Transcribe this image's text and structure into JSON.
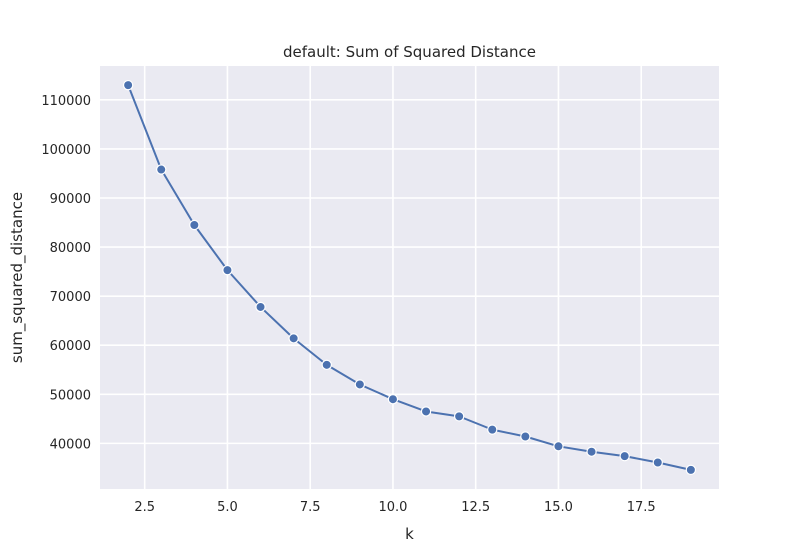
{
  "chart_data": {
    "type": "line",
    "title": "default: Sum of Squared Distance",
    "xlabel": "k",
    "ylabel": "sum_squared_distance",
    "x": [
      2,
      3,
      4,
      5,
      6,
      7,
      8,
      9,
      10,
      11,
      12,
      13,
      14,
      15,
      16,
      17,
      18,
      19
    ],
    "series": [
      {
        "values": [
          113000,
          95800,
          84500,
          75300,
          67800,
          61400,
          56000,
          52000,
          49000,
          46500,
          45500,
          42800,
          41400,
          39400,
          38300,
          37400,
          36100,
          34600
        ]
      }
    ],
    "xlim": [
      1.15,
      19.85
    ],
    "ylim": [
      30700,
      116900
    ],
    "xticks": [
      2.5,
      5.0,
      7.5,
      10.0,
      12.5,
      15.0,
      17.5
    ],
    "xtick_labels": [
      "2.5",
      "5.0",
      "7.5",
      "10.0",
      "12.5",
      "15.0",
      "17.5"
    ],
    "yticks": [
      40000,
      50000,
      60000,
      70000,
      80000,
      90000,
      100000,
      110000
    ],
    "ytick_labels": [
      "40000",
      "50000",
      "60000",
      "70000",
      "80000",
      "90000",
      "100000",
      "110000"
    ],
    "grid": true,
    "markers": true,
    "colors": {
      "line": "#4c72b0",
      "marker_edge": "#ffffff",
      "plot_background": "#eaeaf2",
      "grid": "#ffffff"
    }
  }
}
